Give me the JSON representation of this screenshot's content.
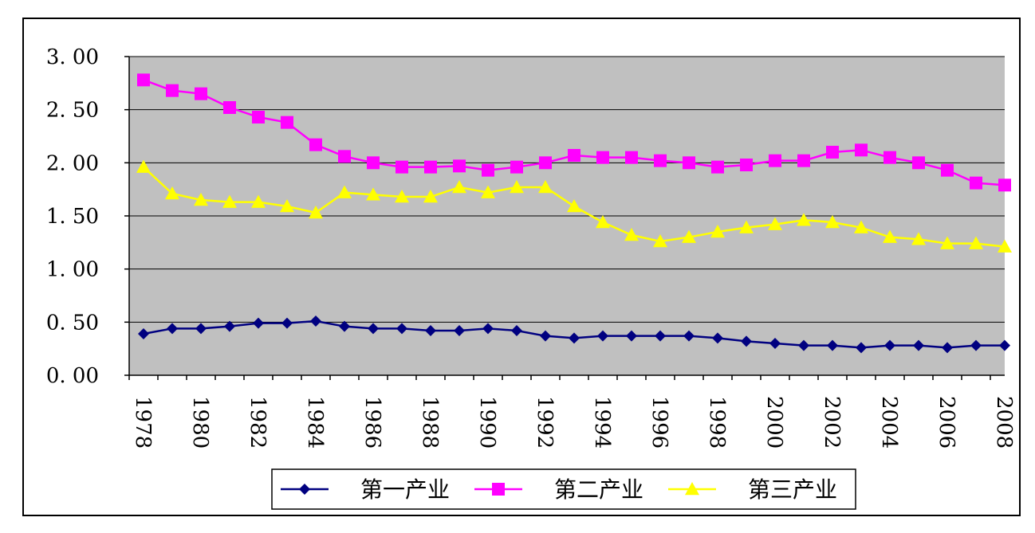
{
  "chart_data": {
    "type": "line",
    "title": "",
    "xlabel": "",
    "ylabel": "",
    "ylim": [
      0,
      3
    ],
    "y_ticks": [
      "0. 00",
      "0. 50",
      "1. 00",
      "1. 50",
      "2. 00",
      "2. 50",
      "3. 00"
    ],
    "x": [
      1978,
      1979,
      1980,
      1981,
      1982,
      1983,
      1984,
      1985,
      1986,
      1987,
      1988,
      1989,
      1990,
      1991,
      1992,
      1993,
      1994,
      1995,
      1996,
      1997,
      1998,
      1999,
      2000,
      2001,
      2002,
      2003,
      2004,
      2005,
      2006,
      2007,
      2008
    ],
    "x_tick_labels": [
      "1978",
      "1980",
      "1982",
      "1984",
      "1986",
      "1988",
      "1990",
      "1992",
      "1994",
      "1996",
      "1998",
      "2000",
      "2002",
      "2004",
      "2006",
      "2008"
    ],
    "grid": true,
    "legend_position": "bottom",
    "plot_background": "#c0c0c0",
    "series": [
      {
        "name": "第一产业",
        "color": "#000080",
        "marker": "diamond",
        "values": [
          0.39,
          0.44,
          0.44,
          0.46,
          0.49,
          0.49,
          0.51,
          0.46,
          0.44,
          0.44,
          0.42,
          0.42,
          0.44,
          0.42,
          0.37,
          0.35,
          0.37,
          0.37,
          0.37,
          0.37,
          0.35,
          0.32,
          0.3,
          0.28,
          0.28,
          0.26,
          0.28,
          0.28,
          0.26,
          0.28,
          0.28
        ]
      },
      {
        "name": "第二产业",
        "color": "#ff00ff",
        "marker": "square",
        "values": [
          2.78,
          2.68,
          2.65,
          2.52,
          2.43,
          2.38,
          2.17,
          2.06,
          2.0,
          1.96,
          1.96,
          1.97,
          1.93,
          1.96,
          2.0,
          2.07,
          2.05,
          2.05,
          2.02,
          2.0,
          1.96,
          1.98,
          2.02,
          2.02,
          2.1,
          2.12,
          2.05,
          2.0,
          1.93,
          1.81,
          1.79
        ]
      },
      {
        "name": "第三产业",
        "color": "#ffff00",
        "marker": "triangle",
        "values": [
          1.96,
          1.71,
          1.65,
          1.63,
          1.63,
          1.59,
          1.53,
          1.72,
          1.7,
          1.68,
          1.68,
          1.77,
          1.72,
          1.77,
          1.77,
          1.59,
          1.44,
          1.32,
          1.26,
          1.3,
          1.35,
          1.39,
          1.42,
          1.46,
          1.44,
          1.39,
          1.3,
          1.28,
          1.24,
          1.24,
          1.21
        ]
      }
    ]
  }
}
